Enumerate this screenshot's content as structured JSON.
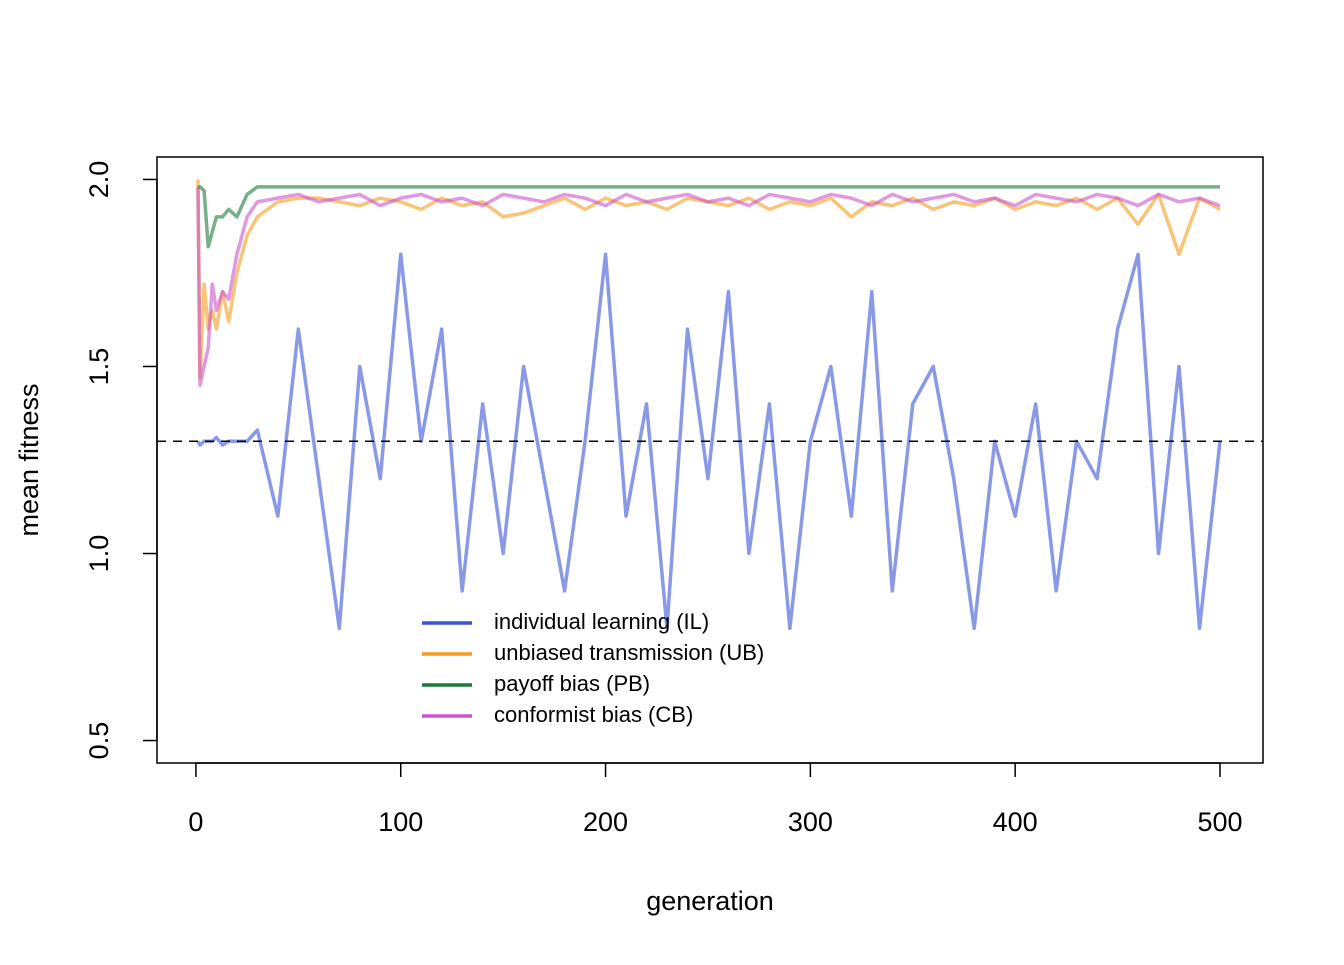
{
  "chart_data": {
    "type": "line",
    "xlabel": "generation",
    "ylabel": "mean fitness",
    "x": [
      1,
      2,
      4,
      6,
      8,
      10,
      13,
      16,
      20,
      25,
      30,
      40,
      50,
      60,
      70,
      80,
      90,
      100,
      110,
      120,
      130,
      140,
      150,
      160,
      170,
      180,
      190,
      200,
      210,
      220,
      230,
      240,
      250,
      260,
      270,
      280,
      290,
      300,
      310,
      320,
      330,
      340,
      350,
      360,
      370,
      380,
      390,
      400,
      410,
      420,
      430,
      440,
      450,
      460,
      470,
      480,
      490,
      500
    ],
    "series": [
      {
        "name": "individual learning (IL)",
        "color": "#3b55d6",
        "values": [
          1.3,
          1.29,
          1.3,
          1.3,
          1.3,
          1.31,
          1.29,
          1.3,
          1.3,
          1.3,
          1.33,
          1.1,
          1.6,
          1.2,
          0.8,
          1.5,
          1.2,
          1.8,
          1.3,
          1.6,
          0.9,
          1.4,
          1.0,
          1.5,
          1.2,
          0.9,
          1.3,
          1.8,
          1.1,
          1.4,
          0.8,
          1.6,
          1.2,
          1.7,
          1.0,
          1.4,
          0.8,
          1.3,
          1.5,
          1.1,
          1.7,
          0.9,
          1.4,
          1.5,
          1.2,
          0.8,
          1.3,
          1.1,
          1.4,
          0.9,
          1.3,
          1.2,
          1.6,
          1.8,
          1.0,
          1.5,
          0.8,
          1.3
        ]
      },
      {
        "name": "unbiased transmission (UB)",
        "color": "#f39c1e",
        "values": [
          2.0,
          1.47,
          1.72,
          1.6,
          1.65,
          1.6,
          1.7,
          1.62,
          1.75,
          1.85,
          1.9,
          1.94,
          1.95,
          1.95,
          1.94,
          1.93,
          1.95,
          1.94,
          1.92,
          1.95,
          1.93,
          1.94,
          1.9,
          1.91,
          1.93,
          1.95,
          1.92,
          1.95,
          1.93,
          1.94,
          1.92,
          1.95,
          1.94,
          1.93,
          1.95,
          1.92,
          1.94,
          1.93,
          1.95,
          1.9,
          1.94,
          1.93,
          1.95,
          1.92,
          1.94,
          1.93,
          1.95,
          1.92,
          1.94,
          1.93,
          1.95,
          1.92,
          1.95,
          1.88,
          1.96,
          1.8,
          1.95,
          1.92
        ]
      },
      {
        "name": "payoff bias (PB)",
        "color": "#1a7a3a",
        "values": [
          1.98,
          1.98,
          1.97,
          1.82,
          1.86,
          1.9,
          1.9,
          1.92,
          1.9,
          1.96,
          1.98,
          1.98,
          1.98,
          1.98,
          1.98,
          1.98,
          1.98,
          1.98,
          1.98,
          1.98,
          1.98,
          1.98,
          1.98,
          1.98,
          1.98,
          1.98,
          1.98,
          1.98,
          1.98,
          1.98,
          1.98,
          1.98,
          1.98,
          1.98,
          1.98,
          1.98,
          1.98,
          1.98,
          1.98,
          1.98,
          1.98,
          1.98,
          1.98,
          1.98,
          1.98,
          1.98,
          1.98,
          1.98,
          1.98,
          1.98,
          1.98,
          1.98,
          1.98,
          1.98,
          1.98,
          1.98,
          1.98,
          1.98
        ]
      },
      {
        "name": "conformist bias (CB)",
        "color": "#cc55cc",
        "values": [
          1.98,
          1.45,
          1.5,
          1.55,
          1.72,
          1.65,
          1.7,
          1.68,
          1.8,
          1.9,
          1.94,
          1.95,
          1.96,
          1.94,
          1.95,
          1.96,
          1.93,
          1.95,
          1.96,
          1.94,
          1.95,
          1.93,
          1.96,
          1.95,
          1.94,
          1.96,
          1.95,
          1.93,
          1.96,
          1.94,
          1.95,
          1.96,
          1.94,
          1.95,
          1.93,
          1.96,
          1.95,
          1.94,
          1.96,
          1.95,
          1.93,
          1.96,
          1.94,
          1.95,
          1.96,
          1.94,
          1.95,
          1.93,
          1.96,
          1.95,
          1.94,
          1.96,
          1.95,
          1.93,
          1.96,
          1.94,
          1.95,
          1.93
        ]
      }
    ],
    "hline": 1.3,
    "xlim": [
      -19,
      521
    ],
    "ylim": [
      0.44,
      2.06
    ],
    "xticks": [
      0,
      100,
      200,
      300,
      400,
      500
    ],
    "yticks": [
      0.5,
      {
        "value": 1.0,
        "label": "1.0"
      },
      1.5,
      {
        "value": 2.0,
        "label": "2.0"
      }
    ],
    "line_opacity": 0.6
  }
}
